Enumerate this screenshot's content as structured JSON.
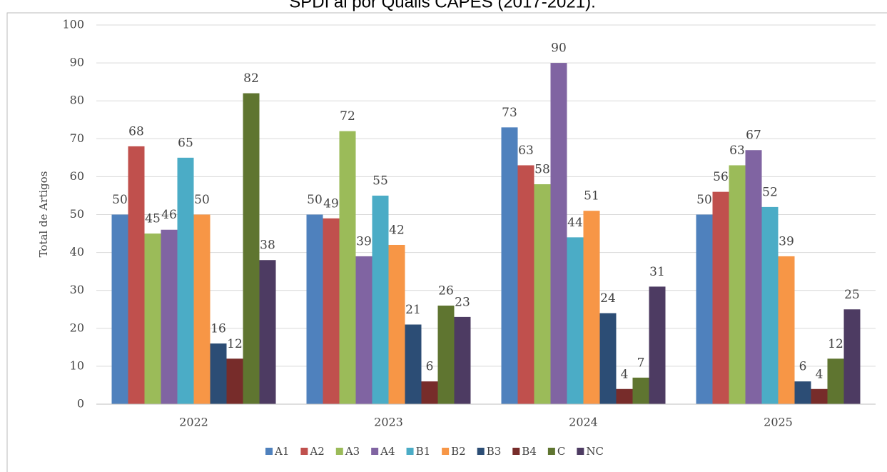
{
  "chart_data": {
    "type": "bar",
    "title": "SPDI ai por Qualis CAPES (2017-2021).",
    "y_label": "Total de Artigos",
    "categories": [
      "2022",
      "2023",
      "2024",
      "2025"
    ],
    "series": [
      {
        "name": "A1",
        "color": "#4f81bd",
        "values": [
          50,
          50,
          73,
          50
        ]
      },
      {
        "name": "A2",
        "color": "#c0504d",
        "values": [
          68,
          49,
          63,
          56
        ]
      },
      {
        "name": "A3",
        "color": "#9bbb59",
        "values": [
          45,
          72,
          58,
          63
        ]
      },
      {
        "name": "A4",
        "color": "#8064a2",
        "values": [
          46,
          39,
          90,
          67
        ]
      },
      {
        "name": "B1",
        "color": "#4bacc6",
        "values": [
          65,
          55,
          44,
          52
        ]
      },
      {
        "name": "B2",
        "color": "#f79646",
        "values": [
          50,
          42,
          51,
          39
        ]
      },
      {
        "name": "B3",
        "color": "#2c4d75",
        "values": [
          16,
          21,
          24,
          6
        ]
      },
      {
        "name": "B4",
        "color": "#772c2a",
        "values": [
          12,
          6,
          4,
          4
        ]
      },
      {
        "name": "C",
        "color": "#5f7530",
        "values": [
          82,
          26,
          7,
          12
        ]
      },
      {
        "name": "NC",
        "color": "#4d3b62",
        "values": [
          38,
          23,
          31,
          25
        ]
      }
    ],
    "ylim": [
      0,
      100
    ],
    "yticks": [
      0,
      10,
      20,
      30,
      40,
      50,
      60,
      70,
      80,
      90,
      100
    ],
    "grid": true,
    "legend": "bottom"
  }
}
